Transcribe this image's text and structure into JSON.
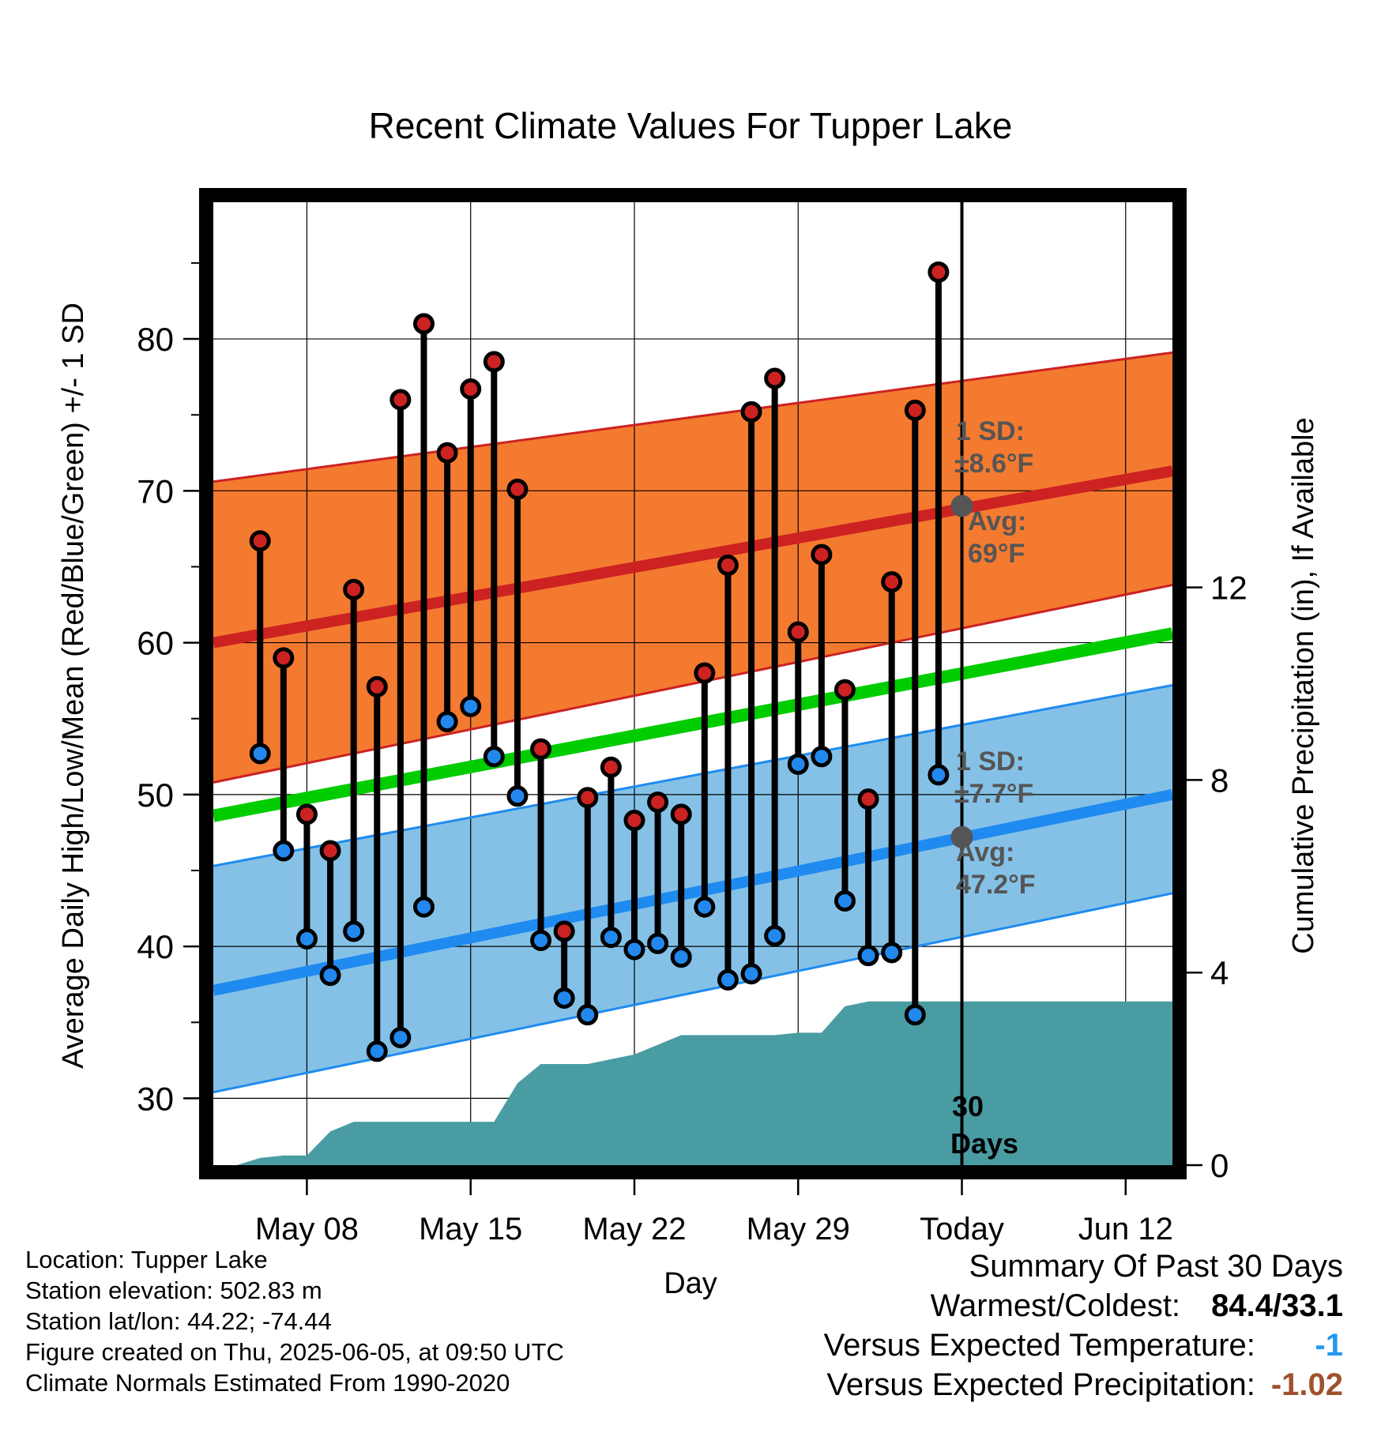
{
  "chart_data": {
    "type": "line",
    "title": "Recent Climate Values For Tupper Lake",
    "xlabel": "Day",
    "ylabel": "Average Daily High/Low/Mean (Red/Blue/Green) +/- 1 SD",
    "y2label": "Cumulative Precipitation (in), If Available",
    "x_ticks": [
      "May 08",
      "May 15",
      "May 22",
      "May 29",
      "Today",
      "Jun 12"
    ],
    "y_ticks": [
      "30",
      "40",
      "50",
      "60",
      "70",
      "80"
    ],
    "y2_ticks": [
      "0",
      "4",
      "8",
      "12"
    ],
    "ylim": [
      25.6,
      89.0
    ],
    "y2lim": [
      0,
      20
    ],
    "xlim": [
      "2025-05-04",
      "2025-06-14"
    ],
    "grid": true,
    "days": [
      "2025-05-06",
      "2025-05-07",
      "2025-05-08",
      "2025-05-09",
      "2025-05-10",
      "2025-05-11",
      "2025-05-12",
      "2025-05-13",
      "2025-05-14",
      "2025-05-15",
      "2025-05-16",
      "2025-05-17",
      "2025-05-18",
      "2025-05-19",
      "2025-05-20",
      "2025-05-21",
      "2025-05-22",
      "2025-05-23",
      "2025-05-24",
      "2025-05-25",
      "2025-05-26",
      "2025-05-27",
      "2025-05-28",
      "2025-05-29",
      "2025-05-30",
      "2025-05-31",
      "2025-06-01",
      "2025-06-02",
      "2025-06-03",
      "2025-06-04"
    ],
    "series": [
      {
        "name": "High",
        "color": "#cc2222",
        "values": [
          66.7,
          59.0,
          48.7,
          46.3,
          63.5,
          57.1,
          76.0,
          81.0,
          72.5,
          76.7,
          78.5,
          70.1,
          53.0,
          41.0,
          49.8,
          51.8,
          48.3,
          49.5,
          48.7,
          58.0,
          65.1,
          75.2,
          77.4,
          60.7,
          65.8,
          56.9,
          49.7,
          64.0,
          75.3,
          84.4
        ]
      },
      {
        "name": "Low",
        "color": "#2288ee",
        "values": [
          52.7,
          46.3,
          40.5,
          38.1,
          41.0,
          33.1,
          34.0,
          42.6,
          54.8,
          55.8,
          52.5,
          49.9,
          40.4,
          36.6,
          35.5,
          40.6,
          39.8,
          40.2,
          39.3,
          42.6,
          37.8,
          38.2,
          40.7,
          52.0,
          52.5,
          43.0,
          39.4,
          39.6,
          35.5,
          51.3
        ]
      }
    ],
    "normals_x": [
      "2025-05-04",
      "2025-06-14"
    ],
    "normal_high": [
      60.0,
      71.3
    ],
    "normal_high_band": {
      "upper": [
        70.6,
        79.1
      ],
      "lower": [
        50.8,
        63.8
      ]
    },
    "normal_low": [
      37.1,
      50.0
    ],
    "normal_low_band": {
      "upper": [
        45.3,
        57.2
      ],
      "lower": [
        30.4,
        43.5
      ]
    },
    "normal_mean": [
      48.6,
      60.6
    ],
    "precip_x": [
      "2025-05-04",
      "2025-05-05",
      "2025-05-06",
      "2025-05-07",
      "2025-05-08",
      "2025-05-09",
      "2025-05-10",
      "2025-05-11",
      "2025-05-12",
      "2025-05-13",
      "2025-05-14",
      "2025-05-15",
      "2025-05-16",
      "2025-05-17",
      "2025-05-18",
      "2025-05-19",
      "2025-05-20",
      "2025-05-21",
      "2025-05-22",
      "2025-05-23",
      "2025-05-24",
      "2025-05-25",
      "2025-05-26",
      "2025-05-27",
      "2025-05-28",
      "2025-05-29",
      "2025-05-30",
      "2025-05-31",
      "2025-06-01",
      "2025-06-02",
      "2025-06-03",
      "2025-06-04",
      "2025-06-05",
      "2025-06-14"
    ],
    "cumulative_precip": [
      0,
      0,
      0.15,
      0.2,
      0.2,
      0.7,
      0.9,
      0.9,
      0.9,
      0.9,
      0.9,
      0.9,
      0.9,
      1.7,
      2.1,
      2.1,
      2.1,
      2.2,
      2.3,
      2.5,
      2.7,
      2.7,
      2.7,
      2.7,
      2.7,
      2.75,
      2.75,
      3.3,
      3.4,
      3.4,
      3.4,
      3.4,
      3.4,
      3.4
    ],
    "today": "2025-06-05",
    "annotations": {
      "high_sd": "1 SD:",
      "high_sd_val": "±8.6°F",
      "high_avg": "Avg:",
      "high_avg_val": "69°F",
      "low_sd": "1 SD:",
      "low_sd_val": "±7.7°F",
      "low_avg": "Avg:",
      "low_avg_val": "47.2°F",
      "high_avg_value": 69.0,
      "low_avg_value": 47.2,
      "days_num": "30",
      "days_label": "Days"
    }
  },
  "footer": {
    "location": "Location: Tupper Lake",
    "elevation": "Station elevation: 502.83 m",
    "latlon": "Station lat/lon: 44.22; -74.44",
    "created": "Figure created on Thu, 2025-06-05, at 09:50 UTC",
    "normals": "Climate Normals Estimated From 1990-2020"
  },
  "summary": {
    "heading": "Summary Of Past 30 Days",
    "warmest_label": "Warmest/Coldest:",
    "warmest_value": "84.4/33.1",
    "temp_label": "Versus Expected Temperature:",
    "temp_value": "-1",
    "temp_color": "#2299ee",
    "precip_label": "Versus Expected Precipitation:",
    "precip_value": "-1.02",
    "precip_color": "#a0522d"
  },
  "colors": {
    "high_band": "#f47a30",
    "high_line": "#cc2222",
    "low_band": "#85c1e6",
    "low_line": "#1f8bf0",
    "mean_line": "#00cc00",
    "precip": "#4a9ca3",
    "high_marker": "#cc2222",
    "low_marker": "#2288ee",
    "annotation": "#555555"
  }
}
